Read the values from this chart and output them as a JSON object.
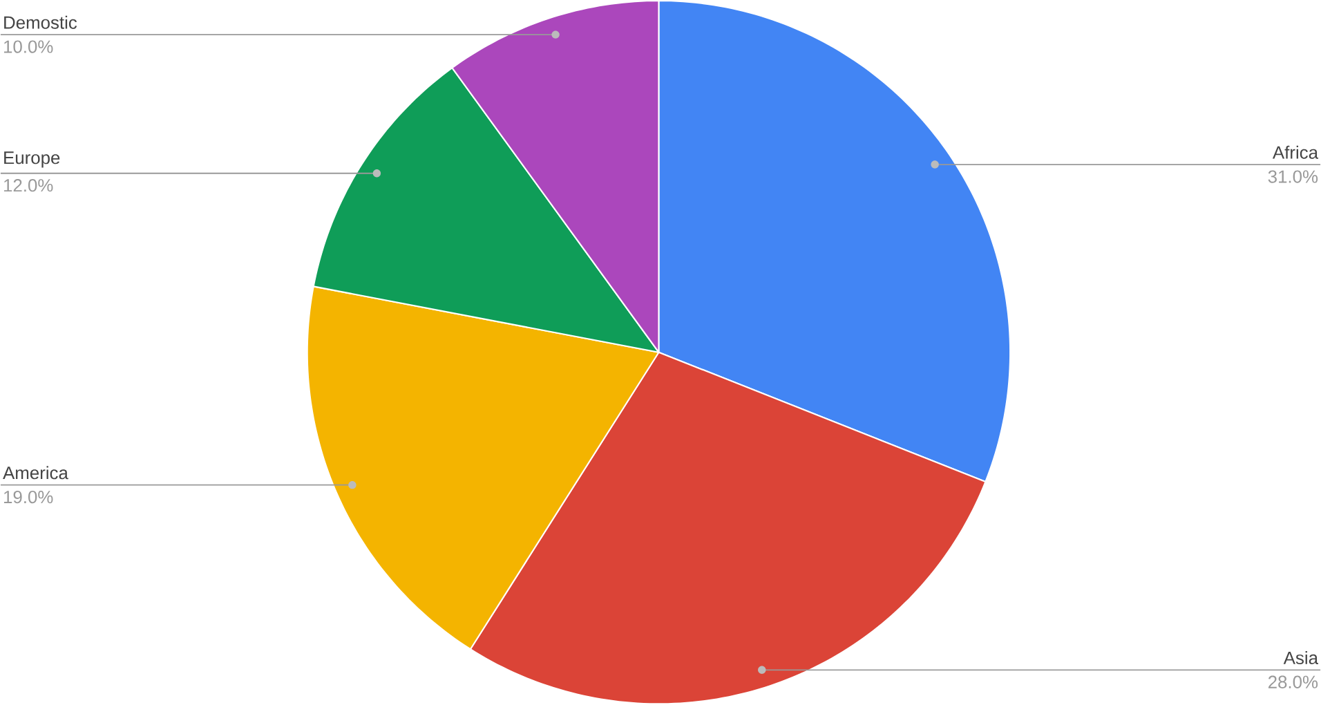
{
  "chart_data": {
    "type": "pie",
    "categories": [
      "Africa",
      "Asia",
      "America",
      "Europe",
      "Demostic"
    ],
    "values": [
      31,
      28,
      19,
      12,
      10
    ],
    "colors": [
      "#4285f4",
      "#db4437",
      "#f4b400",
      "#0f9d58",
      "#ab47bc"
    ],
    "value_labels": [
      "31.0%",
      "28.0%",
      "19.0%",
      "12.0%",
      "10.0%"
    ]
  }
}
